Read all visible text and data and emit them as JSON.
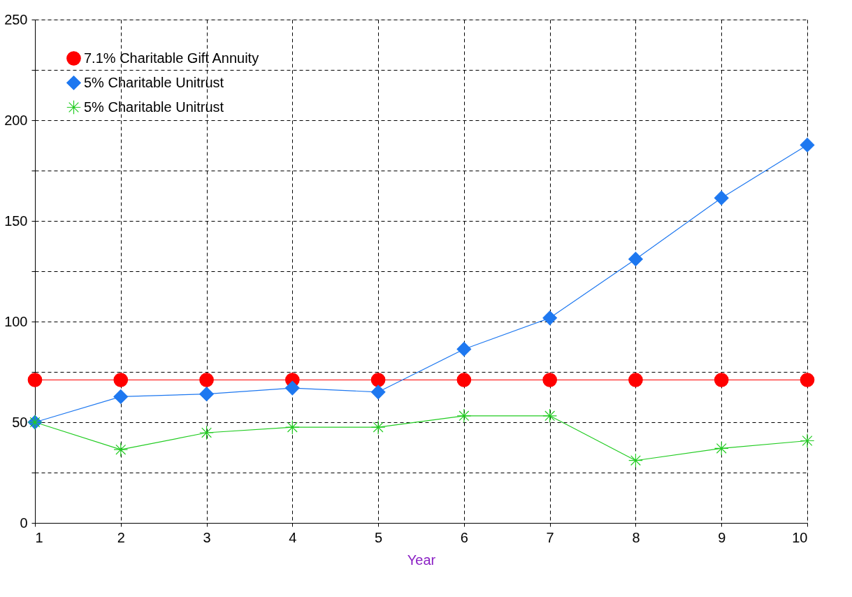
{
  "chart_data": {
    "type": "line",
    "xlabel": "Year",
    "x": [
      1,
      2,
      3,
      4,
      5,
      6,
      7,
      8,
      9,
      10
    ],
    "xlim": [
      1,
      10
    ],
    "xticks": [
      1,
      2,
      3,
      4,
      5,
      6,
      7,
      8,
      9,
      10
    ],
    "ylim": [
      0,
      250
    ],
    "yticks": [
      0,
      {
        "value": 25,
        "label": null
      },
      50,
      {
        "value": 75,
        "label": null
      },
      100,
      {
        "value": 125,
        "label": null
      },
      150,
      {
        "value": 175,
        "label": null
      },
      200,
      {
        "value": 225,
        "label": null
      },
      250
    ],
    "grid": true,
    "legend": "top left",
    "series": [
      {
        "name": "7.1% Charitable Gift Annuity",
        "color": "#ff0000",
        "marker": "circle",
        "values": [
          71,
          71,
          71,
          71,
          71,
          71,
          71,
          71,
          71,
          71
        ]
      },
      {
        "name": "5% Charitable Unitrust",
        "color": "#1e78f0",
        "marker": "diamond",
        "values": [
          50,
          62.7,
          64,
          67,
          65,
          86.3,
          101.8,
          131,
          161.4,
          187.7
        ]
      },
      {
        "name": "5% Charitable Unitrust",
        "color": "#22cc22",
        "marker": "cross",
        "values": [
          50,
          36.4,
          44.8,
          47.5,
          47.5,
          53.2,
          53.2,
          31,
          37,
          40.8
        ]
      }
    ]
  }
}
